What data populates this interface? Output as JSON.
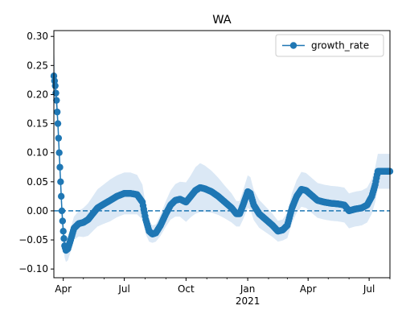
{
  "chart_data": {
    "type": "line",
    "title": "WA",
    "xlabel": "",
    "ylabel": "",
    "x_range": [
      "2020-03-18",
      "2021-08-01"
    ],
    "ylim": [
      -0.115,
      0.31
    ],
    "x_ticks": [
      {
        "date": "2020-04-01",
        "label": "Apr"
      },
      {
        "date": "2020-07-01",
        "label": "Jul"
      },
      {
        "date": "2020-10-01",
        "label": "Oct"
      },
      {
        "date": "2021-01-01",
        "label": "Jan"
      },
      {
        "date": "2021-04-01",
        "label": "Apr"
      },
      {
        "date": "2021-07-01",
        "label": "Jul"
      }
    ],
    "year_label": {
      "date": "2021-01-01",
      "label": "2021"
    },
    "y_ticks": [
      -0.1,
      -0.05,
      0.0,
      0.05,
      0.1,
      0.15,
      0.2,
      0.25,
      0.3
    ],
    "y_tick_labels": [
      "−0.10",
      "−0.05",
      "0.00",
      "0.05",
      "0.10",
      "0.15",
      "0.20",
      "0.25",
      "0.30"
    ],
    "reference_line": {
      "y": 0.0,
      "style": "dashed"
    },
    "legend": {
      "placement": "top-right",
      "entries": [
        "growth_rate"
      ]
    },
    "colors": {
      "series": "#1f77b4",
      "band": "#dbe8f5"
    },
    "grid": false,
    "series": [
      {
        "name": "growth_rate",
        "points": [
          [
            "2020-03-18",
            0.232
          ],
          [
            "2020-03-20",
            0.215
          ],
          [
            "2020-03-22",
            0.19
          ],
          [
            "2020-03-24",
            0.15
          ],
          [
            "2020-03-26",
            0.1
          ],
          [
            "2020-03-28",
            0.05
          ],
          [
            "2020-03-30",
            0.0
          ],
          [
            "2020-04-01",
            -0.035
          ],
          [
            "2020-04-03",
            -0.06
          ],
          [
            "2020-04-05",
            -0.068
          ],
          [
            "2020-04-08",
            -0.065
          ],
          [
            "2020-04-12",
            -0.05
          ],
          [
            "2020-04-17",
            -0.03
          ],
          [
            "2020-04-24",
            -0.022
          ],
          [
            "2020-05-01",
            -0.02
          ],
          [
            "2020-05-08",
            -0.015
          ],
          [
            "2020-05-15",
            -0.005
          ],
          [
            "2020-05-22",
            0.005
          ],
          [
            "2020-06-01",
            0.012
          ],
          [
            "2020-06-10",
            0.018
          ],
          [
            "2020-06-20",
            0.025
          ],
          [
            "2020-07-01",
            0.03
          ],
          [
            "2020-07-10",
            0.03
          ],
          [
            "2020-07-20",
            0.028
          ],
          [
            "2020-07-28",
            0.015
          ],
          [
            "2020-08-02",
            -0.015
          ],
          [
            "2020-08-07",
            -0.035
          ],
          [
            "2020-08-12",
            -0.04
          ],
          [
            "2020-08-17",
            -0.038
          ],
          [
            "2020-08-24",
            -0.025
          ],
          [
            "2020-09-01",
            -0.005
          ],
          [
            "2020-09-08",
            0.01
          ],
          [
            "2020-09-15",
            0.018
          ],
          [
            "2020-09-22",
            0.02
          ],
          [
            "2020-10-01",
            0.015
          ],
          [
            "2020-10-08",
            0.025
          ],
          [
            "2020-10-15",
            0.035
          ],
          [
            "2020-10-22",
            0.04
          ],
          [
            "2020-10-29",
            0.038
          ],
          [
            "2020-11-08",
            0.033
          ],
          [
            "2020-11-18",
            0.025
          ],
          [
            "2020-11-28",
            0.015
          ],
          [
            "2020-12-08",
            0.005
          ],
          [
            "2020-12-15",
            -0.005
          ],
          [
            "2020-12-20",
            -0.005
          ],
          [
            "2020-12-25",
            0.01
          ],
          [
            "2021-01-01",
            0.033
          ],
          [
            "2021-01-05",
            0.03
          ],
          [
            "2021-01-10",
            0.01
          ],
          [
            "2021-01-18",
            -0.005
          ],
          [
            "2021-01-28",
            -0.015
          ],
          [
            "2021-02-07",
            -0.025
          ],
          [
            "2021-02-15",
            -0.035
          ],
          [
            "2021-02-22",
            -0.033
          ],
          [
            "2021-03-01",
            -0.025
          ],
          [
            "2021-03-08",
            0.005
          ],
          [
            "2021-03-15",
            0.025
          ],
          [
            "2021-03-22",
            0.037
          ],
          [
            "2021-03-29",
            0.035
          ],
          [
            "2021-04-05",
            0.028
          ],
          [
            "2021-04-15",
            0.018
          ],
          [
            "2021-04-25",
            0.015
          ],
          [
            "2021-05-05",
            0.013
          ],
          [
            "2021-05-15",
            0.012
          ],
          [
            "2021-05-25",
            0.01
          ],
          [
            "2021-06-01",
            0.0
          ],
          [
            "2021-06-10",
            0.003
          ],
          [
            "2021-06-20",
            0.005
          ],
          [
            "2021-06-28",
            0.01
          ],
          [
            "2021-07-05",
            0.025
          ],
          [
            "2021-07-10",
            0.045
          ],
          [
            "2021-07-14",
            0.068
          ],
          [
            "2021-07-20",
            0.068
          ],
          [
            "2021-08-01",
            0.068
          ]
        ],
        "band_halfwidth": [
          [
            0.05,
            0.03,
            0.025,
            0.02,
            0.02,
            0.02,
            0.02,
            0.02,
            0.02,
            0.02,
            0.02,
            0.02,
            0.02,
            0.022,
            0.025,
            0.028,
            0.03,
            0.032,
            0.034,
            0.036,
            0.036,
            0.036,
            0.036,
            0.034,
            0.03,
            0.025,
            0.018,
            0.015,
            0.015,
            0.018,
            0.022,
            0.025,
            0.028,
            0.03,
            0.034,
            0.036,
            0.04,
            0.042,
            0.04,
            0.036,
            0.032,
            0.028,
            0.025,
            0.022,
            0.022,
            0.025,
            0.028,
            0.028,
            0.026,
            0.024,
            0.022,
            0.02,
            0.018,
            0.018,
            0.022,
            0.026,
            0.028,
            0.03,
            0.03,
            0.03,
            0.03,
            0.03,
            0.03,
            0.03,
            0.03,
            0.03,
            0.03,
            0.03,
            0.03,
            0.03,
            0.03,
            0.03,
            0.03,
            0.03
          ]
        ]
      }
    ]
  }
}
